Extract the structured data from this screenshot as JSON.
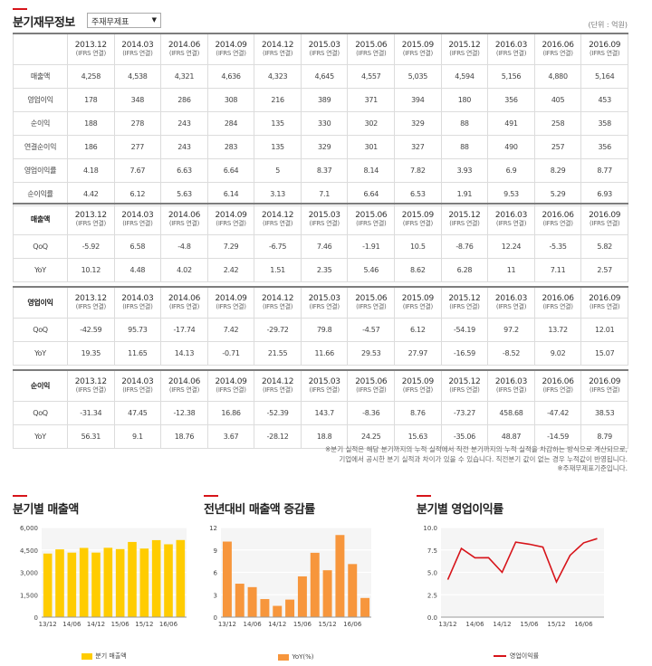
{
  "header": {
    "title": "분기재무정보",
    "select_value": "주재무제표",
    "unit": "(단위 : 억원)"
  },
  "columns": [
    [
      "2013.12",
      "(IFRS 연결)"
    ],
    [
      "2014.03",
      "(IFRS 연결)"
    ],
    [
      "2014.06",
      "(IFRS 연결)"
    ],
    [
      "2014.09",
      "(IFRS 연결)"
    ],
    [
      "2014.12",
      "(IFRS 연결)"
    ],
    [
      "2015.03",
      "(IFRS 연결)"
    ],
    [
      "2015.06",
      "(IFRS 연결)"
    ],
    [
      "2015.09",
      "(IFRS 연결)"
    ],
    [
      "2015.12",
      "(IFRS 연결)"
    ],
    [
      "2016.03",
      "(IFRS 연결)"
    ],
    [
      "2016.06",
      "(IFRS 연결)"
    ],
    [
      "2016.09",
      "(IFRS 연결)"
    ]
  ],
  "main_table": {
    "rows": [
      {
        "label": "매출액",
        "values": [
          "4,258",
          "4,538",
          "4,321",
          "4,636",
          "4,323",
          "4,645",
          "4,557",
          "5,035",
          "4,594",
          "5,156",
          "4,880",
          "5,164"
        ]
      },
      {
        "label": "영업이익",
        "values": [
          "178",
          "348",
          "286",
          "308",
          "216",
          "389",
          "371",
          "394",
          "180",
          "356",
          "405",
          "453"
        ]
      },
      {
        "label": "순이익",
        "values": [
          "188",
          "278",
          "243",
          "284",
          "135",
          "330",
          "302",
          "329",
          "88",
          "491",
          "258",
          "358"
        ]
      },
      {
        "label": "연결순이익",
        "values": [
          "186",
          "277",
          "243",
          "283",
          "135",
          "329",
          "301",
          "327",
          "88",
          "490",
          "257",
          "356"
        ]
      },
      {
        "label": "영업이익률",
        "values": [
          "4.18",
          "7.67",
          "6.63",
          "6.64",
          "5",
          "8.37",
          "8.14",
          "7.82",
          "3.93",
          "6.9",
          "8.29",
          "8.77"
        ]
      },
      {
        "label": "순이익률",
        "values": [
          "4.42",
          "6.12",
          "5.63",
          "6.14",
          "3.13",
          "7.1",
          "6.64",
          "6.53",
          "1.91",
          "9.53",
          "5.29",
          "6.93"
        ]
      }
    ]
  },
  "growth_tables": [
    {
      "label": "매출액",
      "rows": [
        {
          "label": "QoQ",
          "values": [
            "-5.92",
            "6.58",
            "-4.8",
            "7.29",
            "-6.75",
            "7.46",
            "-1.91",
            "10.5",
            "-8.76",
            "12.24",
            "-5.35",
            "5.82"
          ]
        },
        {
          "label": "YoY",
          "values": [
            "10.12",
            "4.48",
            "4.02",
            "2.42",
            "1.51",
            "2.35",
            "5.46",
            "8.62",
            "6.28",
            "11",
            "7.11",
            "2.57"
          ]
        }
      ]
    },
    {
      "label": "영업이익",
      "rows": [
        {
          "label": "QoQ",
          "values": [
            "-42.59",
            "95.73",
            "-17.74",
            "7.42",
            "-29.72",
            "79.8",
            "-4.57",
            "6.12",
            "-54.19",
            "97.2",
            "13.72",
            "12.01"
          ]
        },
        {
          "label": "YoY",
          "values": [
            "19.35",
            "11.65",
            "14.13",
            "-0.71",
            "21.55",
            "11.66",
            "29.53",
            "27.97",
            "-16.59",
            "-8.52",
            "9.02",
            "15.07"
          ]
        }
      ]
    },
    {
      "label": "순이익",
      "rows": [
        {
          "label": "QoQ",
          "values": [
            "-31.34",
            "47.45",
            "-12.38",
            "16.86",
            "-52.39",
            "143.7",
            "-8.36",
            "8.76",
            "-73.27",
            "458.68",
            "-47.42",
            "38.53"
          ]
        },
        {
          "label": "YoY",
          "values": [
            "56.31",
            "9.1",
            "18.76",
            "3.67",
            "-28.12",
            "18.8",
            "24.25",
            "15.63",
            "-35.06",
            "48.87",
            "-14.59",
            "8.79"
          ]
        }
      ]
    }
  ],
  "notes": [
    "※분기 실적은 해당 분기까지의 누적 실적에서 직전 분기까지의 누적 실적을 차감하는 방식으로 계산되므로,",
    "기업에서 공시한 분기 실적과 차이가 있을 수 있습니다. 직전분기 값이 없는 경우 누적값이 반영됩니다.",
    "※주재무제표기준입니다."
  ],
  "chart_data": [
    {
      "type": "bar",
      "title": "분기별 매출액",
      "color": "#ffcc00",
      "x_ticks": [
        "13/12",
        "14/06",
        "14/12",
        "15/06",
        "15/12",
        "16/06"
      ],
      "y_ticks": [
        "6,000",
        "4,500",
        "3,000",
        "1,500",
        "0"
      ],
      "ylim": [
        0,
        6000
      ],
      "values": [
        4258,
        4538,
        4321,
        4636,
        4323,
        4645,
        4557,
        5035,
        4594,
        5156,
        4880,
        5164
      ],
      "legend": "분기 매출액"
    },
    {
      "type": "bar",
      "title": "전년대비 매출액 증감률",
      "color": "#f7963c",
      "x_ticks": [
        "13/12",
        "14/06",
        "14/12",
        "15/06",
        "15/12",
        "16/06"
      ],
      "y_ticks": [
        "12",
        "9",
        "6",
        "3",
        "0"
      ],
      "ylim": [
        0,
        12
      ],
      "values": [
        10.12,
        4.48,
        4.02,
        2.42,
        1.51,
        2.35,
        5.46,
        8.62,
        6.28,
        11,
        7.11,
        2.57
      ],
      "legend": "YoY(%)"
    },
    {
      "type": "line",
      "title": "분기별 영업이익률",
      "color": "#d7141a",
      "x_ticks": [
        "13/12",
        "14/06",
        "14/12",
        "15/06",
        "15/12",
        "16/06"
      ],
      "y_ticks": [
        "10.0",
        "7.5",
        "5.0",
        "2.5",
        "0.0"
      ],
      "ylim": [
        0,
        10
      ],
      "values": [
        4.18,
        7.67,
        6.63,
        6.64,
        5,
        8.37,
        8.14,
        7.82,
        3.93,
        6.9,
        8.29,
        8.77
      ],
      "legend": "영업이익률"
    }
  ]
}
